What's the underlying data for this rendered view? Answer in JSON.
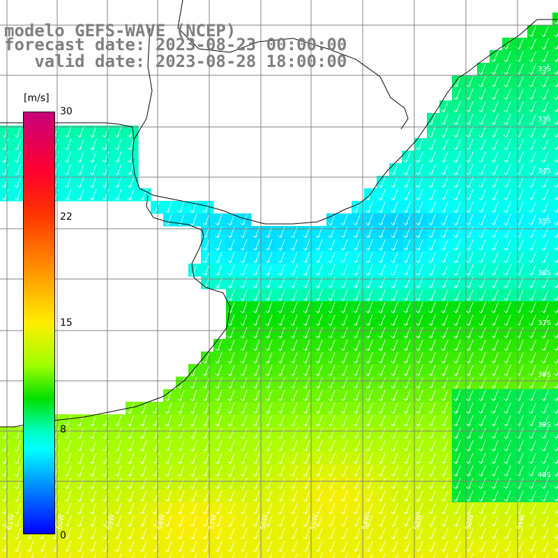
{
  "title": {
    "line1": "modelo GEFS-WAVE (NCEP)",
    "line2": "forecast date: 2023-08-23 00:00:00",
    "line3": "   valid date: 2023-08-28 18:00:00"
  },
  "colorbar": {
    "unit": "[m/s]",
    "ticks": [
      "30",
      "22",
      "15",
      "8",
      "0"
    ],
    "range": [
      0,
      30
    ],
    "colors": [
      "#0000ff",
      "#0096ff",
      "#00ffff",
      "#00ffc8",
      "#00e000",
      "#a0ff00",
      "#ffee00",
      "#ff8800",
      "#ff3300",
      "#ff0030",
      "#c8007a"
    ]
  },
  "axes": {
    "lat_labels": [
      "32S",
      "33S",
      "34S",
      "35S",
      "36S",
      "37S",
      "38S",
      "39S",
      "40S"
    ],
    "lon_labels": [
      "61W",
      "60W",
      "59W",
      "58W",
      "57W",
      "56W",
      "55W",
      "54W",
      "53W",
      "52W",
      "51W"
    ]
  },
  "field": {
    "variable": "wind speed with direction arrows",
    "direction": "toward south-southwest",
    "grid_color": "#808080",
    "coast_color": "#000000",
    "land_color": "#ffffff"
  }
}
